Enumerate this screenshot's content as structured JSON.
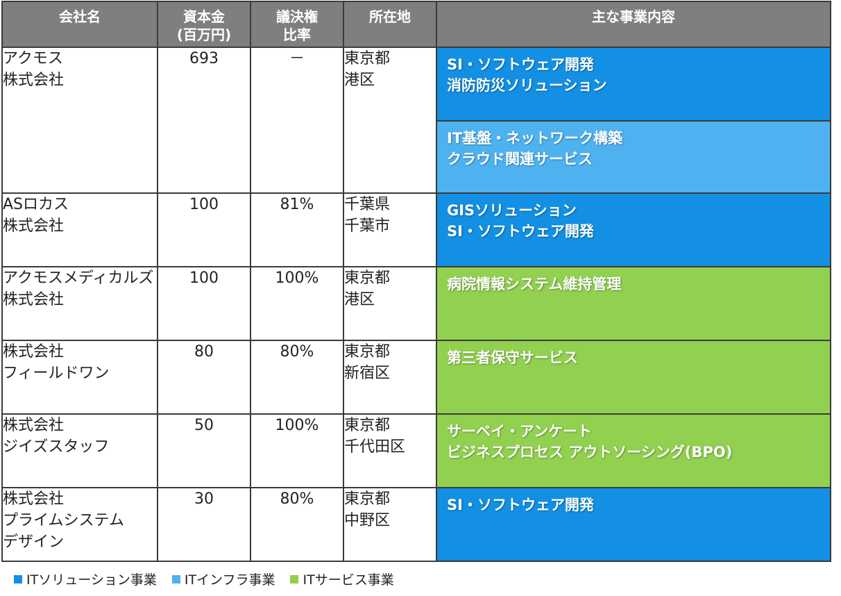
{
  "headers": {
    "company": [
      "会社名"
    ],
    "capital": [
      "資本金",
      "(百万円)"
    ],
    "voting": [
      "議決権",
      "比率"
    ],
    "location": [
      "所在地"
    ],
    "business": [
      "主な事業内容"
    ]
  },
  "rows": [
    {
      "name": [
        "アクモス",
        "株式会社"
      ],
      "capital": "693",
      "voting": "－",
      "location": [
        "東京都",
        "港区"
      ],
      "business": [
        {
          "segment": "sol",
          "lines": [
            "SI・ソフトウェア開発",
            "消防防災ソリューション"
          ]
        },
        {
          "segment": "inf",
          "lines": [
            "IT基盤・ネットワーク構築",
            "クラウド関連サービス"
          ]
        }
      ]
    },
    {
      "name": [
        "ASロカス",
        "株式会社"
      ],
      "capital": "100",
      "voting": "81%",
      "location": [
        "千葉県",
        "千葉市"
      ],
      "business": [
        {
          "segment": "sol",
          "lines": [
            "GISソリューション",
            "SI・ソフトウェア開発"
          ]
        }
      ]
    },
    {
      "name": [
        "アクモスメディカルズ",
        "株式会社"
      ],
      "capital": "100",
      "voting": "100%",
      "location": [
        "東京都",
        "港区"
      ],
      "business": [
        {
          "segment": "svc",
          "lines": [
            "病院情報システム維持管理"
          ]
        }
      ]
    },
    {
      "name": [
        "株式会社",
        "フィールドワン"
      ],
      "capital": "80",
      "voting": "80%",
      "location": [
        "東京都",
        "新宿区"
      ],
      "business": [
        {
          "segment": "svc",
          "lines": [
            "第三者保守サービス"
          ]
        }
      ]
    },
    {
      "name": [
        "株式会社",
        "ジイズスタッフ"
      ],
      "capital": "50",
      "voting": "100%",
      "location": [
        "東京都",
        "千代田区"
      ],
      "business": [
        {
          "segment": "svc",
          "lines": [
            "サーベイ・アンケート",
            "ビジネスプロセス アウトソーシング(BPO)"
          ]
        }
      ]
    },
    {
      "name": [
        "株式会社",
        "プライムシステム",
        "デザイン"
      ],
      "capital": "30",
      "voting": "80%",
      "location": [
        "東京都",
        "中野区"
      ],
      "business": [
        {
          "segment": "sol",
          "lines": [
            "SI・ソフトウェア開発"
          ]
        }
      ]
    }
  ],
  "legend": [
    {
      "segment": "sol",
      "label": "ITソリューション事業",
      "color": "#1390e3"
    },
    {
      "segment": "inf",
      "label": "ITインフラ事業",
      "color": "#4fb2f0"
    },
    {
      "segment": "svc",
      "label": "ITサービス事業",
      "color": "#92d050"
    }
  ]
}
